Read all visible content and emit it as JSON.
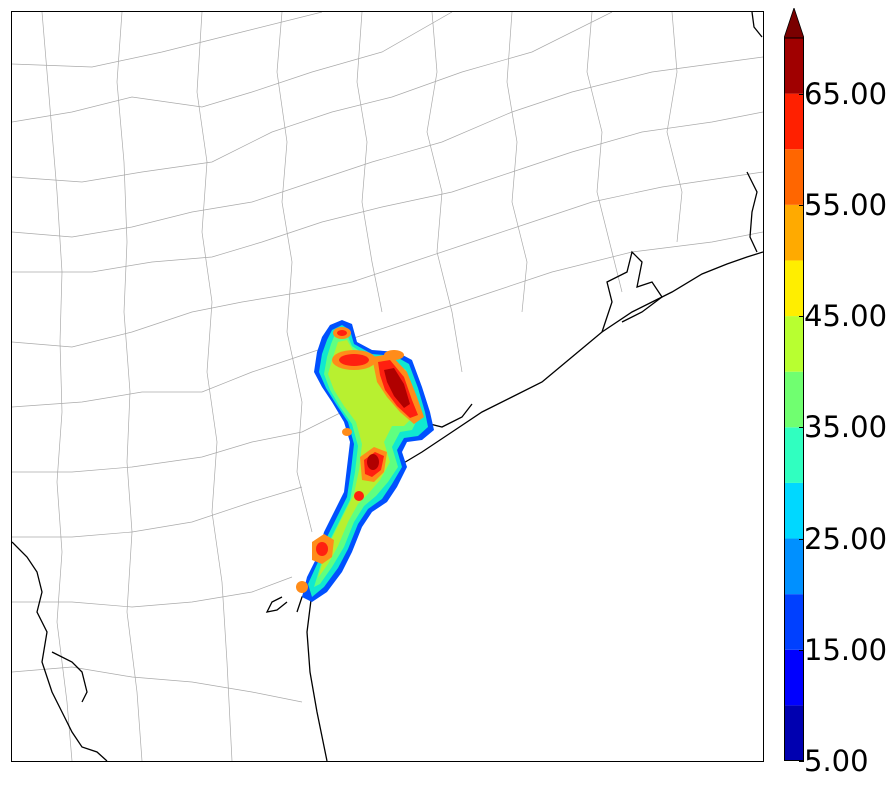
{
  "map": {
    "region": "Texas Gulf Coast county map",
    "county_line_color": "#aaaaaa",
    "coast_line_color": "#000000",
    "field_colors": {
      "blue_edge": "#0050ff",
      "cyan": "#10e8d0",
      "light_green": "#60ff80",
      "yellow_green": "#b8f030",
      "orange": "#ff8c1a",
      "red": "#ff2010",
      "dark_red": "#b00000"
    }
  },
  "colorbar": {
    "extend": "max",
    "levels": [
      5,
      10,
      15,
      20,
      25,
      30,
      35,
      40,
      45,
      50,
      55,
      60,
      65,
      70
    ],
    "colors": [
      "#0000b0",
      "#0000ff",
      "#0040ff",
      "#0090ff",
      "#00d8ff",
      "#30ffc0",
      "#70ff70",
      "#b8ff30",
      "#ffee00",
      "#ffaa00",
      "#ff6600",
      "#ff2000",
      "#a00000"
    ],
    "extend_color": "#7a0000",
    "tick_labels": [
      "5.00",
      "15.00",
      "25.00",
      "35.00",
      "45.00",
      "55.00",
      "65.00"
    ]
  }
}
